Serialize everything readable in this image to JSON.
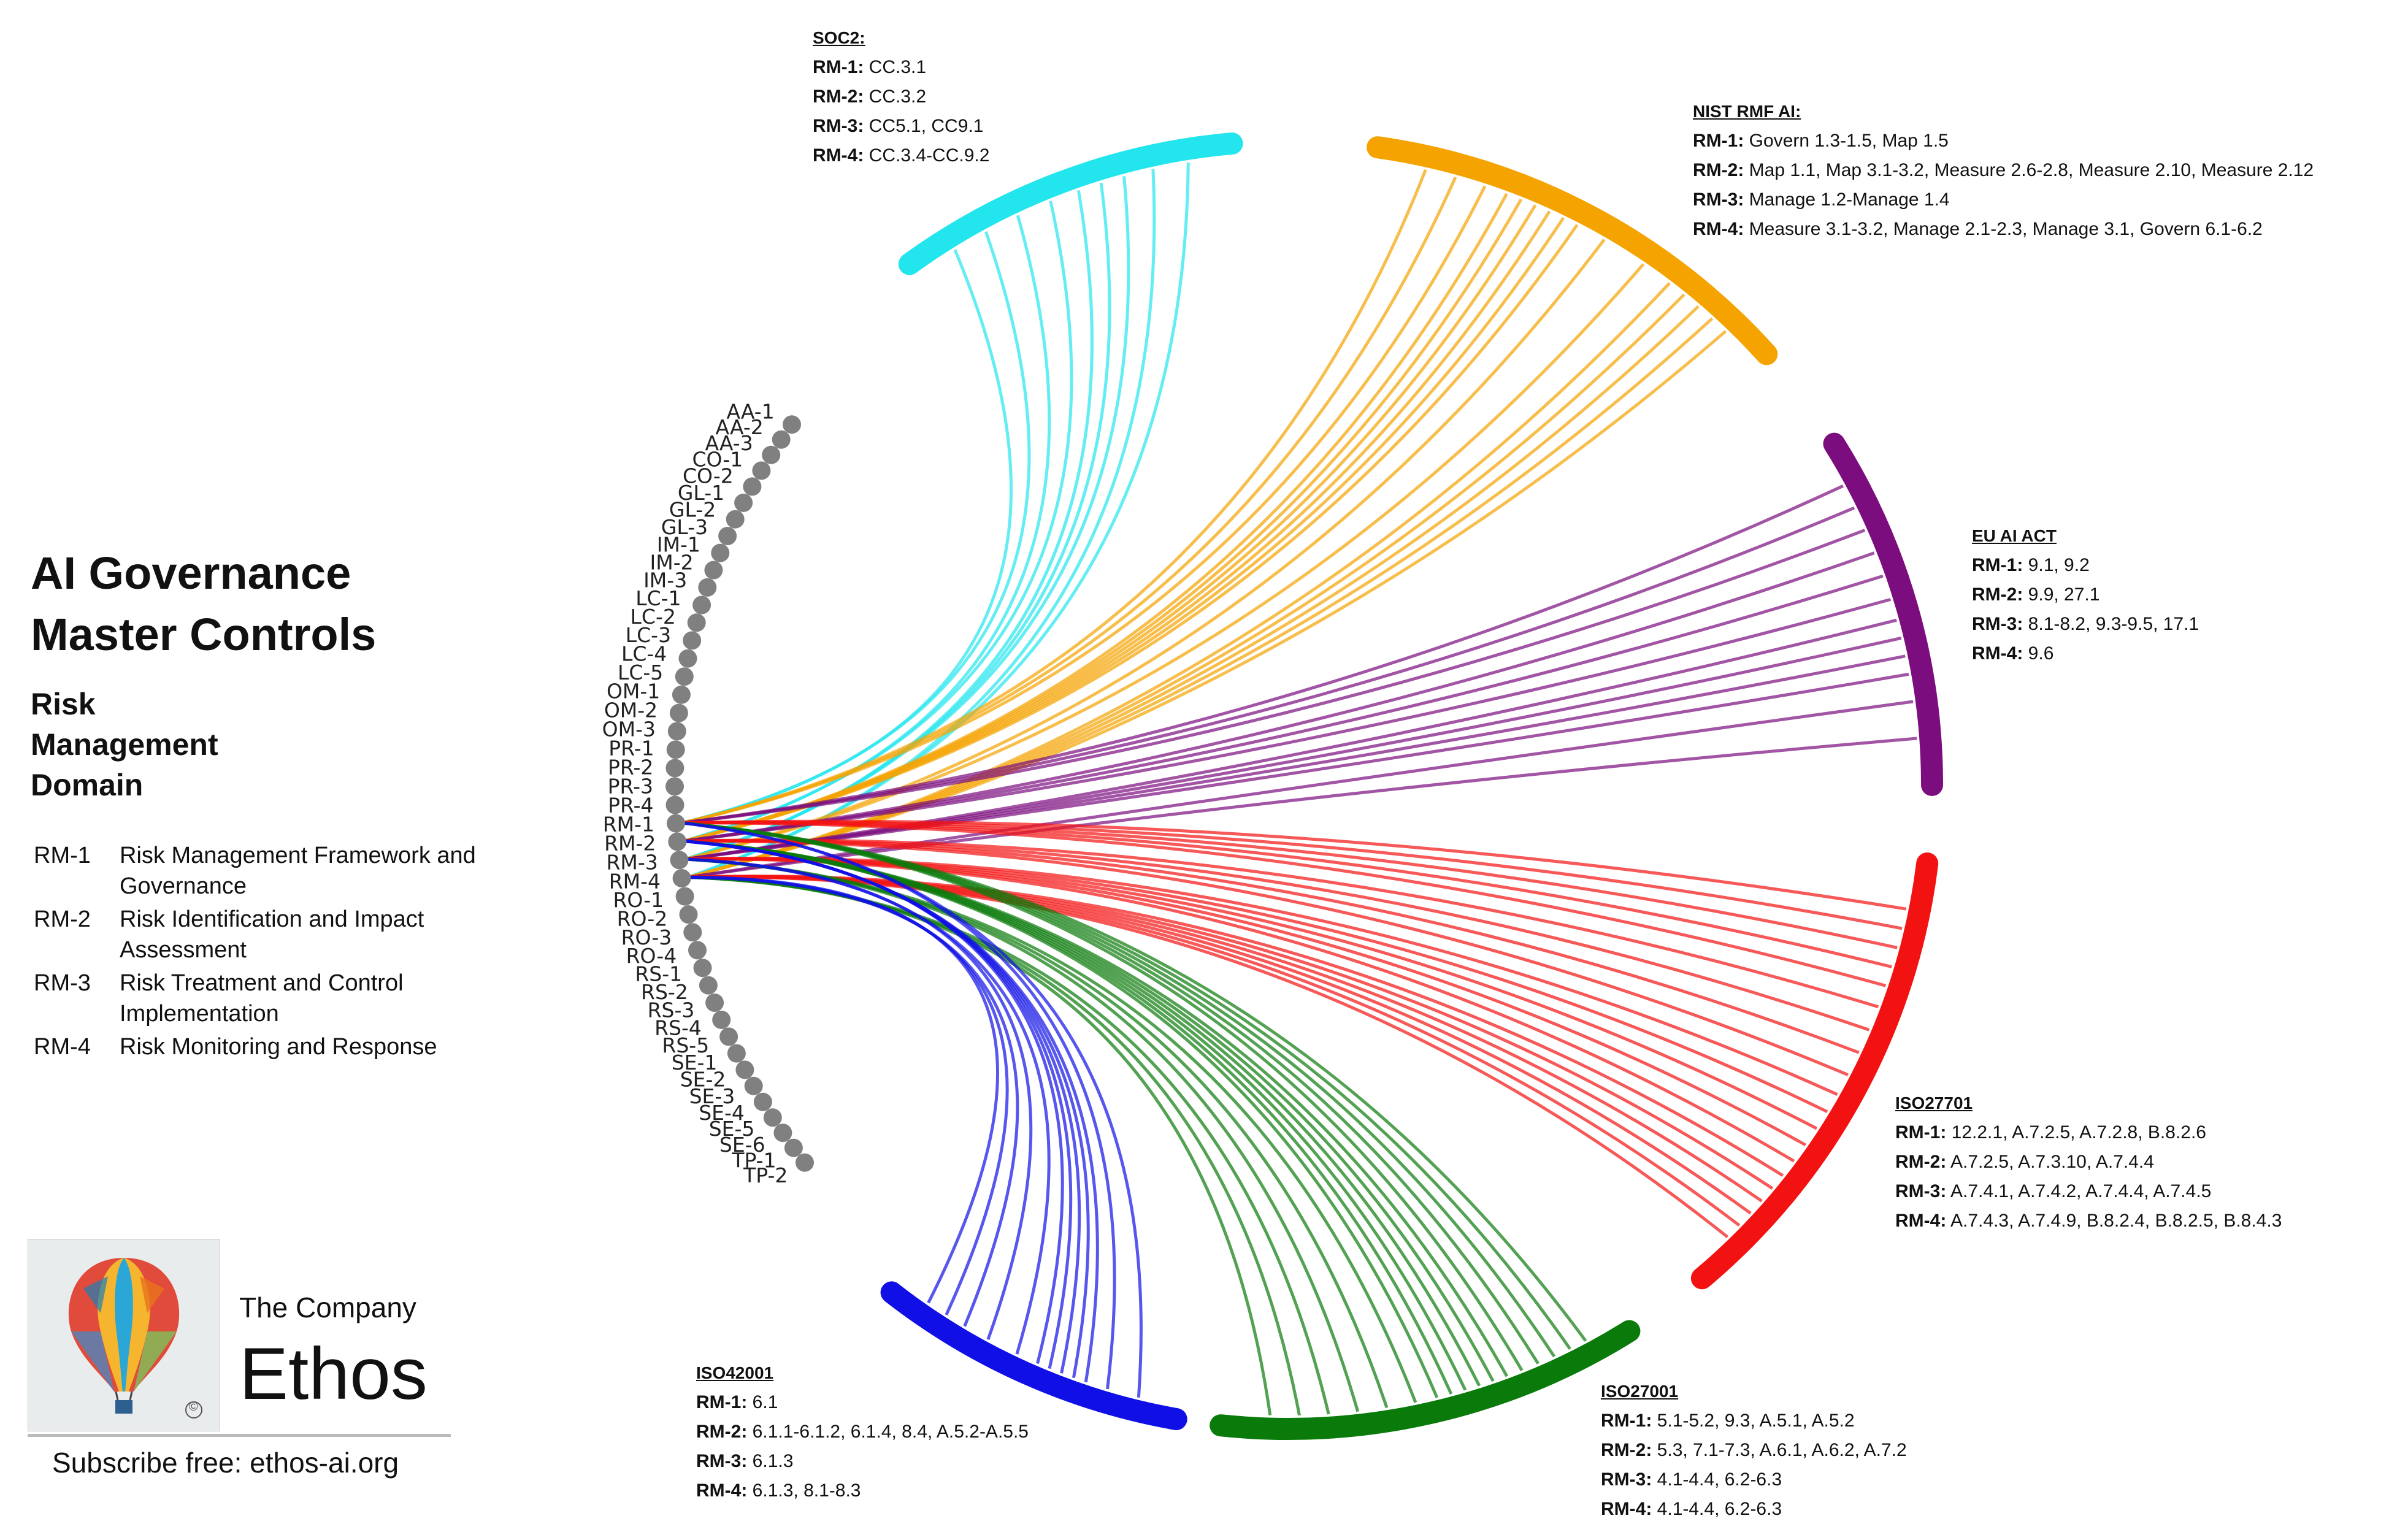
{
  "title_lines": [
    "AI Governance",
    "Master Controls"
  ],
  "domain_lines": [
    "Risk",
    "Management",
    "Domain"
  ],
  "legend": [
    {
      "code": "RM-1",
      "desc": "Risk Management Framework and Governance"
    },
    {
      "code": "RM-2",
      "desc": "Risk Identification and Impact Assessment"
    },
    {
      "code": "RM-3",
      "desc": "Risk Treatment and Control Implementation"
    },
    {
      "code": "RM-4",
      "desc": "Risk Monitoring and Response"
    }
  ],
  "company": {
    "small": "The Company",
    "big": "Ethos",
    "copyright": "©"
  },
  "subscribe": "Subscribe free: ethos-ai.org",
  "controls": [
    "AA-1",
    "AA-2",
    "AA-3",
    "CO-1",
    "CO-2",
    "GL-1",
    "GL-2",
    "GL-3",
    "IM-1",
    "IM-2",
    "IM-3",
    "LC-1",
    "LC-2",
    "LC-3",
    "LC-4",
    "LC-5",
    "OM-1",
    "OM-2",
    "OM-3",
    "PR-1",
    "PR-2",
    "PR-3",
    "PR-4",
    "RM-1",
    "RM-2",
    "RM-3",
    "RM-4",
    "RO-1",
    "RO-2",
    "RO-3",
    "RO-4",
    "RS-1",
    "RS-2",
    "RS-3",
    "RS-4",
    "RS-5",
    "SE-1",
    "SE-2",
    "SE-3",
    "SE-4",
    "SE-5",
    "SE-6",
    "TP-1",
    "TP-2"
  ],
  "node_color": "#808080",
  "frameworks": [
    {
      "id": "soc2",
      "title": "SOC2:",
      "color": "#22e5ee",
      "lines": [
        {
          "code": "RM-1:",
          "text": "CC.3.1"
        },
        {
          "code": "RM-2:",
          "text": "CC.3.2"
        },
        {
          "code": "RM-3:",
          "text": "CC5.1,  CC9.1"
        },
        {
          "code": "RM-4:",
          "text": "CC.3.4-CC.9.2"
        }
      ]
    },
    {
      "id": "nist",
      "title": "NIST RMF AI:",
      "color": "#f5a300",
      "lines": [
        {
          "code": "RM-1:",
          "text": "Govern 1.3-1.5, Map 1.5"
        },
        {
          "code": "RM-2:",
          "text": "Map 1.1,  Map 3.1-3.2, Measure 2.6-2.8, Measure 2.10, Measure 2.12"
        },
        {
          "code": "RM-3:",
          "text": "Manage 1.2-Manage 1.4"
        },
        {
          "code": "RM-4:",
          "text": "Measure 3.1-3.2, Manage 2.1-2.3, Manage 3.1, Govern 6.1-6.2"
        }
      ]
    },
    {
      "id": "euai",
      "title": "EU AI ACT",
      "color": "#7b0d7e",
      "lines": [
        {
          "code": "RM-1:",
          "text": "9.1, 9.2"
        },
        {
          "code": "RM-2:",
          "text": "9.9, 27.1"
        },
        {
          "code": "RM-3:",
          "text": "8.1-8.2, 9.3-9.5, 17.1"
        },
        {
          "code": "RM-4:",
          "text": "9.6"
        }
      ]
    },
    {
      "id": "iso27701",
      "title": "ISO27701",
      "color": "#f31212",
      "lines": [
        {
          "code": "RM-1:",
          "text": "12.2.1,  A.7.2.5, A.7.2.8, B.8.2.6"
        },
        {
          "code": "RM-2:",
          "text": "A.7.2.5,  A.7.3.10,  A.7.4.4"
        },
        {
          "code": "RM-3:",
          "text": "A.7.4.1,  A.7.4.2,  A.7.4.4,  A.7.4.5"
        },
        {
          "code": "RM-4:",
          "text": "A.7.4.3,  A.7.4.9,  B.8.2.4,  B.8.2.5,  B.8.4.3"
        }
      ]
    },
    {
      "id": "iso27001",
      "title": "ISO27001",
      "color": "#0a7a0a",
      "lines": [
        {
          "code": "RM-1:",
          "text": "5.1-5.2,  9.3, A.5.1,  A.5.2"
        },
        {
          "code": "RM-2:",
          "text": "5.3,  7.1-7.3,  A.6.1,  A.6.2,  A.7.2"
        },
        {
          "code": "RM-3:",
          "text": "4.1-4.4,  6.2-6.3"
        },
        {
          "code": "RM-4:",
          "text": "4.1-4.4,  6.2-6.3"
        }
      ]
    },
    {
      "id": "iso42001",
      "title": "ISO42001",
      "color": "#1010e6",
      "lines": [
        {
          "code": "RM-1:",
          "text": "6.1"
        },
        {
          "code": "RM-2:",
          "text": "6.1.1-6.1.2, 6.1.4,  8.4,  A.5.2-A.5.5"
        },
        {
          "code": "RM-3:",
          "text": "6.1.3"
        },
        {
          "code": "RM-4:",
          "text": "6.1.3, 8.1-8.3"
        }
      ]
    }
  ]
}
